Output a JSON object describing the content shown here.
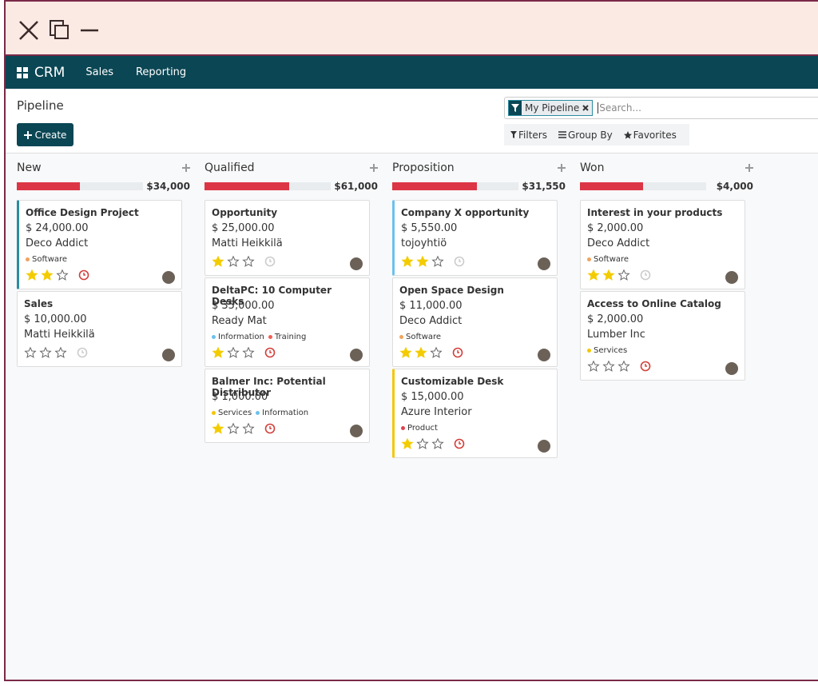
{
  "navbar": {
    "app": "CRM",
    "menu": [
      "Sales",
      "Reporting"
    ]
  },
  "control_panel": {
    "title": "Pipeline",
    "create": "Create",
    "facet": "My Pipeline",
    "search_placeholder": "Search...",
    "filters": "Filters",
    "group_by": "Group By",
    "favorites": "Favorites"
  },
  "columns": [
    {
      "name": "New",
      "total": "$34,000",
      "progress": 0.5,
      "cards": [
        {
          "title": "Office Design Project",
          "amount": "$ 24,000.00",
          "customer": "Deco Addict",
          "tags": [
            {
              "name": "Software",
              "color": "#f0a35e"
            }
          ],
          "priority": 2,
          "activity": "overdue",
          "border": "#2a8ca0"
        },
        {
          "title": "Sales",
          "amount": "$ 10,000.00",
          "customer": "Matti Heikkilä",
          "tags": [],
          "priority": 0,
          "activity": "none"
        }
      ]
    },
    {
      "name": "Qualified",
      "total": "$61,000",
      "progress": 0.67,
      "cards": [
        {
          "title": "Opportunity",
          "amount": "$ 25,000.00",
          "customer": "Matti Heikkilä",
          "tags": [],
          "priority": 1,
          "activity": "none"
        },
        {
          "title": "DeltaPC: 10 Computer Desks",
          "amount": "$ 35,000.00",
          "customer": "Ready Mat",
          "tags": [
            {
              "name": "Information",
              "color": "#6cc1ed"
            },
            {
              "name": "Training",
              "color": "#f06050"
            }
          ],
          "priority": 1,
          "activity": "overdue"
        },
        {
          "title": "Balmer Inc: Potential Distributor",
          "amount": "$ 1,000.00",
          "tags": [
            {
              "name": "Services",
              "color": "#f4c609"
            },
            {
              "name": "Information",
              "color": "#6cc1ed"
            }
          ],
          "priority": 1,
          "activity": "overdue"
        }
      ]
    },
    {
      "name": "Proposition",
      "total": "$31,550",
      "progress": 0.67,
      "cards": [
        {
          "title": "Company X opportunity",
          "amount": "$ 5,550.00",
          "customer": "tojoyhtiö",
          "tags": [],
          "priority": 2,
          "activity": "none",
          "border": "#6cc1ed"
        },
        {
          "title": "Open Space Design",
          "amount": "$ 11,000.00",
          "customer": "Deco Addict",
          "tags": [
            {
              "name": "Software",
              "color": "#f0a35e"
            }
          ],
          "priority": 2,
          "activity": "overdue"
        },
        {
          "title": "Customizable Desk",
          "amount": "$ 15,000.00",
          "customer": "Azure Interior",
          "tags": [
            {
              "name": "Product",
              "color": "#e0414f"
            }
          ],
          "priority": 1,
          "activity": "overdue",
          "border": "#f4c609"
        }
      ]
    },
    {
      "name": "Won",
      "total": "$4,000",
      "progress": 0.5,
      "cards": [
        {
          "title": "Interest in your products",
          "amount": "$ 2,000.00",
          "customer": "Deco Addict",
          "tags": [
            {
              "name": "Software",
              "color": "#f0a35e"
            }
          ],
          "priority": 2,
          "activity": "none"
        },
        {
          "title": "Access to Online Catalog",
          "amount": "$ 2,000.00",
          "customer": "Lumber Inc",
          "tags": [
            {
              "name": "Services",
              "color": "#f4c609"
            }
          ],
          "priority": 0,
          "activity": "overdue"
        }
      ]
    }
  ]
}
